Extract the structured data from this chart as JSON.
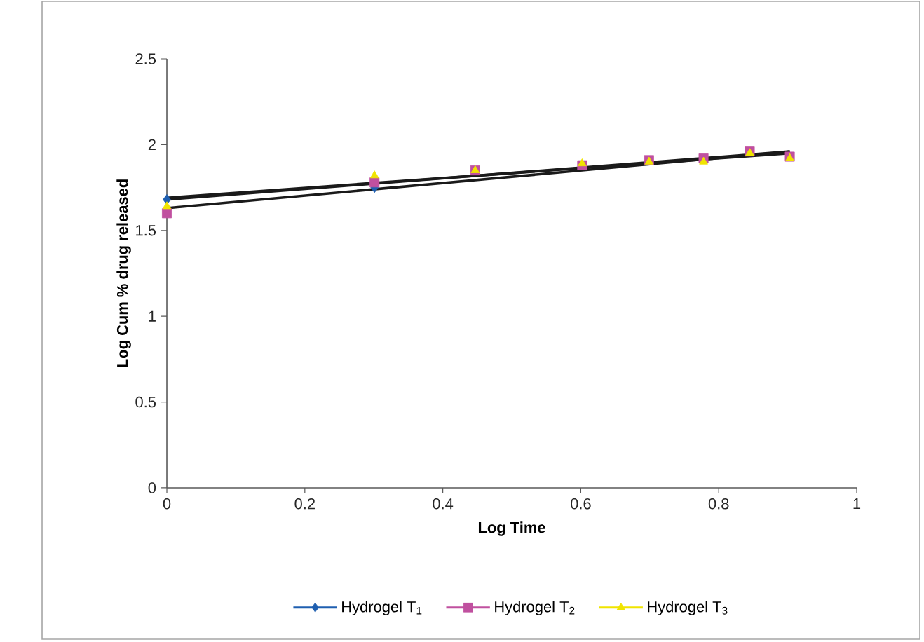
{
  "chart_data": {
    "type": "scatter",
    "xlabel": "Log Time",
    "ylabel": "Log Cum % drug released",
    "xlim": [
      0,
      1
    ],
    "ylim": [
      0,
      2.5
    ],
    "xticks": [
      0,
      0.2,
      0.4,
      0.6,
      0.8,
      1
    ],
    "yticks": [
      0,
      0.5,
      1,
      1.5,
      2,
      2.5
    ],
    "grid": false,
    "legend": "bottom",
    "series": [
      {
        "name": "Hydrogel T$_{1}$",
        "color": "#1f5fb0",
        "marker": "diamond",
        "x": [
          0,
          0.301
        ],
        "values": [
          1.68,
          1.75
        ]
      },
      {
        "name": "Hydrogel T$_{2}$",
        "color": "#c0509f",
        "marker": "square",
        "x": [
          0,
          0.301,
          0.447,
          0.602,
          0.699,
          0.778,
          0.845,
          0.903
        ],
        "values": [
          1.6,
          1.78,
          1.85,
          1.88,
          1.91,
          1.92,
          1.96,
          1.93
        ]
      },
      {
        "name": "Hydrogel T$_{3}$",
        "color": "#f0e400",
        "marker": "triangle",
        "x": [
          0,
          0.301,
          0.447,
          0.602,
          0.699,
          0.778,
          0.845,
          0.903
        ],
        "values": [
          1.64,
          1.82,
          1.85,
          1.89,
          1.9,
          1.9,
          1.95,
          1.92
        ]
      },
      {
        "type": "line",
        "color": "#1a1a1a",
        "marker": "none",
        "x": [
          0,
          0.903
        ],
        "values": [
          1.63,
          1.96
        ]
      },
      {
        "type": "line",
        "color": "#1a1a1a",
        "marker": "none",
        "x": [
          0,
          0.903
        ],
        "values": [
          1.68,
          1.96
        ]
      },
      {
        "type": "line",
        "color": "#1a1a1a",
        "marker": "none",
        "x": [
          0,
          0.903
        ],
        "values": [
          1.69,
          1.95
        ]
      }
    ]
  }
}
